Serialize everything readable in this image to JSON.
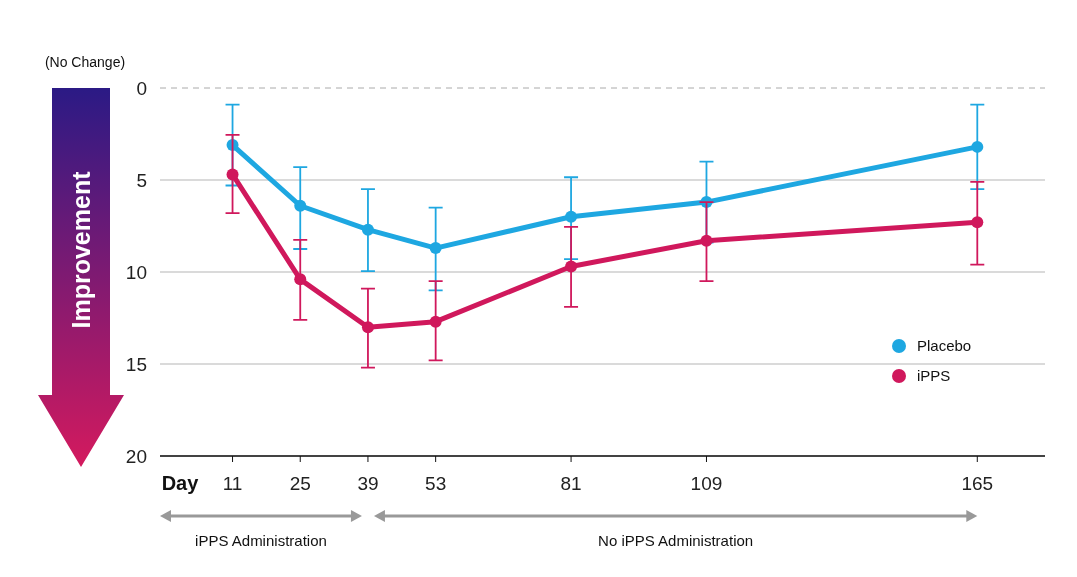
{
  "chart_data": {
    "type": "line",
    "xlabel": "Day",
    "x": [
      11,
      25,
      39,
      53,
      81,
      109,
      165
    ],
    "xlim": [
      -4,
      179
    ],
    "xticks": [
      11,
      25,
      39,
      53,
      81,
      109,
      165
    ],
    "ylim": [
      20,
      0
    ],
    "yticks": [
      0,
      5,
      10,
      15,
      20
    ],
    "grid": "y",
    "legend": "right",
    "marker": "circle",
    "line_style": "solid",
    "series": [
      {
        "name": "Placebo",
        "color": "#1ea7e1",
        "values": [
          3.1,
          6.4,
          7.7,
          8.7,
          7.0,
          6.2,
          3.2
        ],
        "errors": [
          [
            0.9,
            5.3
          ],
          [
            4.3,
            8.75
          ],
          [
            5.5,
            9.95
          ],
          [
            6.5,
            11
          ],
          [
            4.85,
            9.3
          ],
          [
            4.0,
            8.4
          ],
          [
            0.9,
            5.5
          ]
        ]
      },
      {
        "name": "iPPS",
        "color": "#d0185c",
        "values": [
          4.7,
          10.4,
          13.0,
          12.7,
          9.7,
          8.3,
          7.3
        ],
        "errors": [
          [
            2.55,
            6.8
          ],
          [
            8.25,
            12.6
          ],
          [
            10.9,
            15.2
          ],
          [
            10.5,
            14.8
          ],
          [
            7.55,
            11.9
          ],
          [
            6.2,
            10.5
          ],
          [
            5.1,
            9.6
          ]
        ]
      }
    ],
    "ref_lines": [
      {
        "axis": "y",
        "value": 0,
        "line_style": "dashed",
        "color": "#aaaaaa"
      }
    ],
    "annotations": [
      "(No Change)",
      "Improvement",
      "iPPS Administration",
      "No iPPS Administration"
    ]
  }
}
